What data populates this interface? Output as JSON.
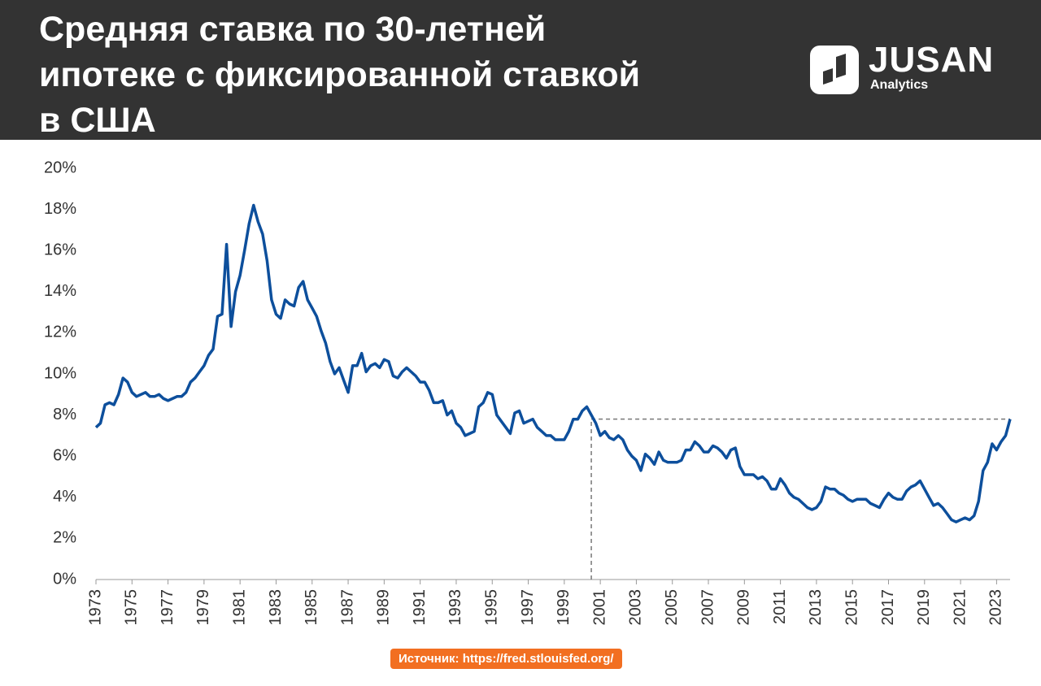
{
  "brand": {
    "name": "JUSAN",
    "subtitle": "Analytics"
  },
  "chart_data": {
    "type": "line",
    "title": "Средняя ставка по 30-летней\nипотеке с фиксированной ставкой\nв США",
    "source": "Источник: https://fred.stlouisfed.org/",
    "xlim": [
      1973,
      2023.75
    ],
    "xticks": [
      1973,
      1975,
      1977,
      1979,
      1981,
      1983,
      1985,
      1987,
      1989,
      1991,
      1993,
      1995,
      1997,
      1999,
      2001,
      2003,
      2005,
      2007,
      2009,
      2011,
      2013,
      2015,
      2017,
      2019,
      2021,
      2023
    ],
    "ylim": [
      0,
      20
    ],
    "yticks": [
      {
        "value": 0,
        "label": "0%"
      },
      {
        "value": 2,
        "label": "2%"
      },
      {
        "value": 4,
        "label": "4%"
      },
      {
        "value": 6,
        "label": "6%"
      },
      {
        "value": 8,
        "label": "8%"
      },
      {
        "value": 10,
        "label": "10%"
      },
      {
        "value": 12,
        "label": "12%"
      },
      {
        "value": 14,
        "label": "14%"
      },
      {
        "value": 16,
        "label": "16%"
      },
      {
        "value": 18,
        "label": "18%"
      },
      {
        "value": 20,
        "label": "20%"
      }
    ],
    "color": "#0d4f9c",
    "reference": {
      "x": 2000.5,
      "y": 7.8
    },
    "x": [
      1973,
      1973.25,
      1973.5,
      1973.75,
      1974,
      1974.25,
      1974.5,
      1974.75,
      1975,
      1975.25,
      1975.5,
      1975.75,
      1976,
      1976.25,
      1976.5,
      1976.75,
      1977,
      1977.25,
      1977.5,
      1977.75,
      1978,
      1978.25,
      1978.5,
      1978.75,
      1979,
      1979.25,
      1979.5,
      1979.75,
      1980,
      1980.25,
      1980.5,
      1980.75,
      1981,
      1981.25,
      1981.5,
      1981.75,
      1982,
      1982.25,
      1982.5,
      1982.75,
      1983,
      1983.25,
      1983.5,
      1983.75,
      1984,
      1984.25,
      1984.5,
      1984.75,
      1985,
      1985.25,
      1985.5,
      1985.75,
      1986,
      1986.25,
      1986.5,
      1986.75,
      1987,
      1987.25,
      1987.5,
      1987.75,
      1988,
      1988.25,
      1988.5,
      1988.75,
      1989,
      1989.25,
      1989.5,
      1989.75,
      1990,
      1990.25,
      1990.5,
      1990.75,
      1991,
      1991.25,
      1991.5,
      1991.75,
      1992,
      1992.25,
      1992.5,
      1992.75,
      1993,
      1993.25,
      1993.5,
      1993.75,
      1994,
      1994.25,
      1994.5,
      1994.75,
      1995,
      1995.25,
      1995.5,
      1995.75,
      1996,
      1996.25,
      1996.5,
      1996.75,
      1997,
      1997.25,
      1997.5,
      1997.75,
      1998,
      1998.25,
      1998.5,
      1998.75,
      1999,
      1999.25,
      1999.5,
      1999.75,
      2000,
      2000.25,
      2000.5,
      2000.75,
      2001,
      2001.25,
      2001.5,
      2001.75,
      2002,
      2002.25,
      2002.5,
      2002.75,
      2003,
      2003.25,
      2003.5,
      2003.75,
      2004,
      2004.25,
      2004.5,
      2004.75,
      2005,
      2005.25,
      2005.5,
      2005.75,
      2006,
      2006.25,
      2006.5,
      2006.75,
      2007,
      2007.25,
      2007.5,
      2007.75,
      2008,
      2008.25,
      2008.5,
      2008.75,
      2009,
      2009.25,
      2009.5,
      2009.75,
      2010,
      2010.25,
      2010.5,
      2010.75,
      2011,
      2011.25,
      2011.5,
      2011.75,
      2012,
      2012.25,
      2012.5,
      2012.75,
      2013,
      2013.25,
      2013.5,
      2013.75,
      2014,
      2014.25,
      2014.5,
      2014.75,
      2015,
      2015.25,
      2015.5,
      2015.75,
      2016,
      2016.25,
      2016.5,
      2016.75,
      2017,
      2017.25,
      2017.5,
      2017.75,
      2018,
      2018.25,
      2018.5,
      2018.75,
      2019,
      2019.25,
      2019.5,
      2019.75,
      2020,
      2020.25,
      2020.5,
      2020.75,
      2021,
      2021.25,
      2021.5,
      2021.75,
      2022,
      2022.25,
      2022.5,
      2022.75,
      2023,
      2023.25,
      2023.5,
      2023.75
    ],
    "values": [
      7.4,
      7.6,
      8.5,
      8.6,
      8.5,
      9.0,
      9.8,
      9.6,
      9.1,
      8.9,
      9.0,
      9.1,
      8.9,
      8.9,
      9.0,
      8.8,
      8.7,
      8.8,
      8.9,
      8.9,
      9.1,
      9.6,
      9.8,
      10.1,
      10.4,
      10.9,
      11.2,
      12.8,
      12.9,
      16.3,
      12.3,
      14.0,
      14.8,
      16.0,
      17.3,
      18.2,
      17.4,
      16.8,
      15.5,
      13.6,
      12.9,
      12.7,
      13.6,
      13.4,
      13.3,
      14.2,
      14.5,
      13.6,
      13.2,
      12.8,
      12.1,
      11.5,
      10.6,
      10.0,
      10.3,
      9.7,
      9.1,
      10.4,
      10.4,
      11.0,
      10.1,
      10.4,
      10.5,
      10.3,
      10.7,
      10.6,
      9.9,
      9.8,
      10.1,
      10.3,
      10.1,
      9.9,
      9.6,
      9.6,
      9.2,
      8.6,
      8.6,
      8.7,
      8.0,
      8.2,
      7.6,
      7.4,
      7.0,
      7.1,
      7.2,
      8.4,
      8.6,
      9.1,
      9.0,
      8.0,
      7.7,
      7.4,
      7.1,
      8.1,
      8.2,
      7.6,
      7.7,
      7.8,
      7.4,
      7.2,
      7.0,
      7.0,
      6.8,
      6.8,
      6.8,
      7.2,
      7.8,
      7.8,
      8.2,
      8.4,
      8.0,
      7.6,
      7.0,
      7.2,
      6.9,
      6.8,
      7.0,
      6.8,
      6.3,
      6.0,
      5.8,
      5.3,
      6.1,
      5.9,
      5.6,
      6.2,
      5.8,
      5.7,
      5.7,
      5.7,
      5.8,
      6.3,
      6.3,
      6.7,
      6.5,
      6.2,
      6.2,
      6.5,
      6.4,
      6.2,
      5.9,
      6.3,
      6.4,
      5.5,
      5.1,
      5.1,
      5.1,
      4.9,
      5.0,
      4.8,
      4.4,
      4.4,
      4.9,
      4.6,
      4.2,
      4.0,
      3.9,
      3.7,
      3.5,
      3.4,
      3.5,
      3.8,
      4.5,
      4.4,
      4.4,
      4.2,
      4.1,
      3.9,
      3.8,
      3.9,
      3.9,
      3.9,
      3.7,
      3.6,
      3.5,
      3.9,
      4.2,
      4.0,
      3.9,
      3.9,
      4.3,
      4.5,
      4.6,
      4.8,
      4.4,
      4.0,
      3.6,
      3.7,
      3.5,
      3.2,
      2.9,
      2.8,
      2.9,
      3.0,
      2.9,
      3.1,
      3.8,
      5.3,
      5.7,
      6.6,
      6.3,
      6.7,
      7.0,
      7.8
    ]
  }
}
